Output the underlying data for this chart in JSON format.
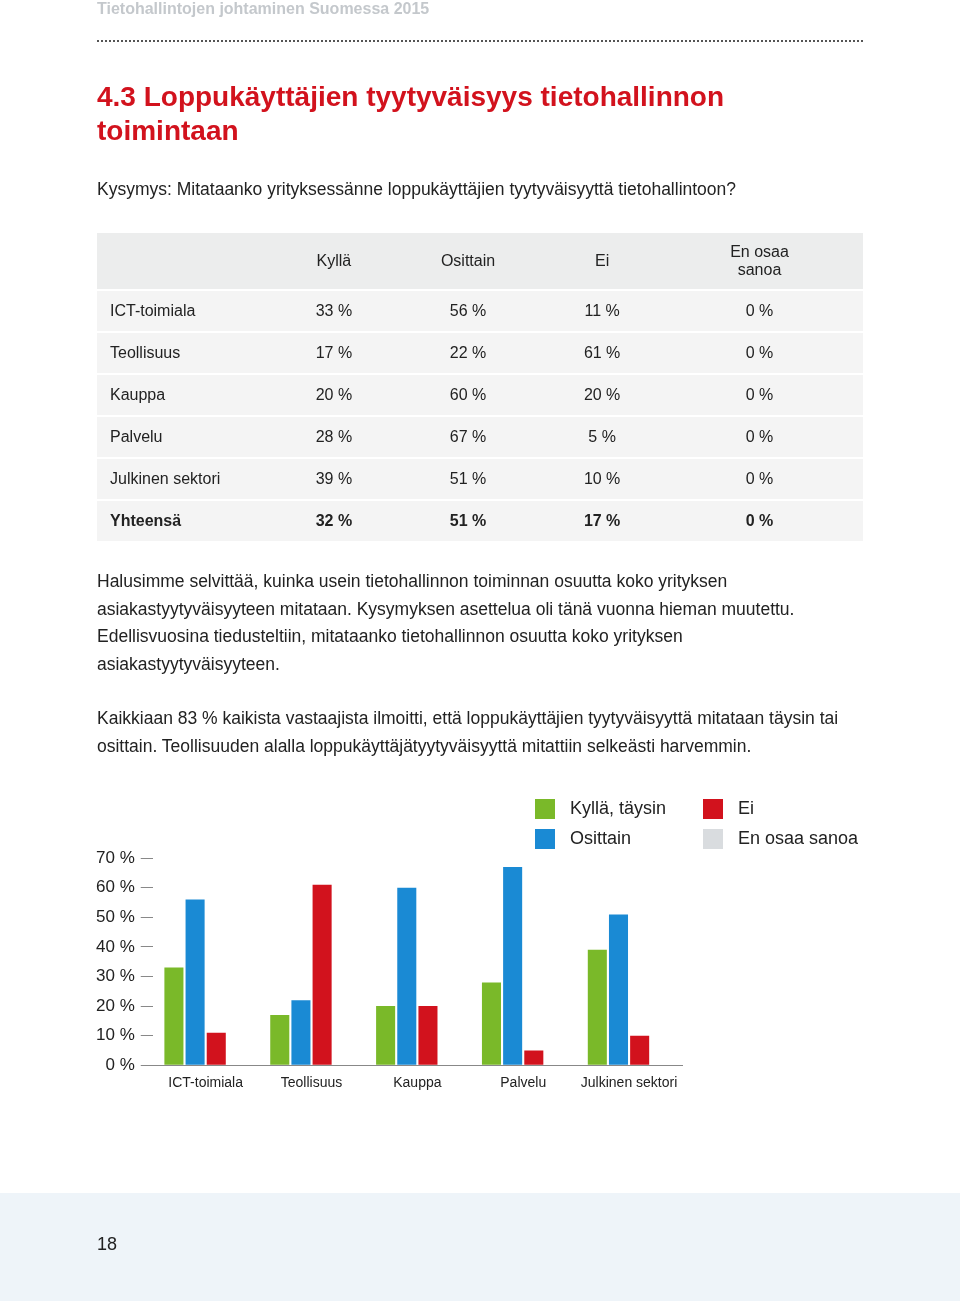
{
  "chart_data": {
    "type": "bar",
    "title": "4.3 Loppukäyttäjien tyytyväisyys tietohallinnon toimintaan",
    "subtitle": "Kysymys: Mitataanko yrityksessänne loppukäyttäjien tyytyväisyyttä tietohallintoon?",
    "categories": [
      "ICT-toimiala",
      "Teollisuus",
      "Kauppa",
      "Palvelu",
      "Julkinen sektori"
    ],
    "series": [
      {
        "name": "Kyllä, täysin",
        "color": "#7ab929",
        "values": [
          33,
          17,
          20,
          28,
          39
        ]
      },
      {
        "name": "Osittain",
        "color": "#1a8ad4",
        "values": [
          56,
          22,
          60,
          67,
          51
        ]
      },
      {
        "name": "Ei",
        "color": "#d2121d",
        "values": [
          11,
          61,
          20,
          5,
          10
        ]
      },
      {
        "name": "En osaa sanoa",
        "color": "#d9dcdf",
        "values": [
          0,
          0,
          0,
          0,
          0
        ]
      }
    ],
    "ylim": [
      0,
      70
    ],
    "yticks": [
      {
        "value": 0,
        "label": "0 %"
      },
      {
        "value": 10,
        "label": "10 %"
      },
      {
        "value": 20,
        "label": "20 %"
      },
      {
        "value": 30,
        "label": "30 %"
      },
      {
        "value": 40,
        "label": "40 %"
      },
      {
        "value": 50,
        "label": "50 %"
      },
      {
        "value": 60,
        "label": "60 %"
      },
      {
        "value": 70,
        "label": "70 %"
      }
    ],
    "grid": false,
    "legend": "top right",
    "annotations": [
      "Tietohallintojen johtaminen Suomessa 2015",
      "Kyllä",
      "Osittain",
      "Ei",
      "En osaa sanoa",
      "33 %",
      "56 %",
      "11 %",
      "0 %",
      "17 %",
      "22 %",
      "61 %",
      "0 %",
      "20 %",
      "60 %",
      "20 %",
      "0 %",
      "28 %",
      "67 %",
      "5 %",
      "0 %",
      "39 %",
      "51 %",
      "10 %",
      "0 %",
      "Yhteensä",
      "32 %",
      "51 %",
      "17 %",
      "0 %",
      "Halusimme selvittää, kuinka usein tietohallinnon toiminnan osuutta koko yrityksen asiakastyytyväisyyteen mitataan. Kysymyksen asettelua oli tänä vuonna hieman muutettu. Edellisvuosina tiedusteltiin, mitataanko tietohallinnon osuutta koko yrityksen asiakastyytyväisyyteen.",
      "Kaikkiaan 83 % kaikista vastaajista ilmoitti, että loppukäyttäjien tyytyväisyyttä mitataan täysin tai osittain. Teollisuuden alalla loppukäyttäjätyytyväisyyttä mitattiin selkeästi harvemmin.",
      "18"
    ]
  }
}
